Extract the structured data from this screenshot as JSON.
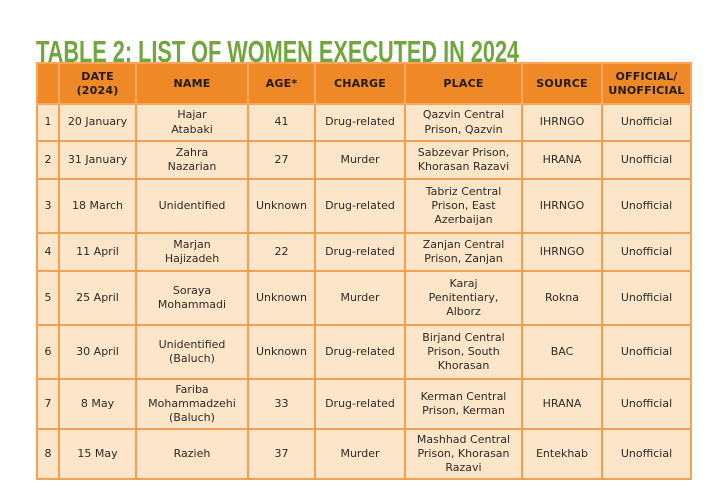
{
  "page": {
    "title": "TABLE 2: LIST OF WOMEN EXECUTED IN 2024"
  },
  "colors": {
    "title_green": "#71A53D",
    "header_orange": "#EF8826",
    "cell_peach": "#FCE5C9",
    "border_orange": "#F4A052",
    "text_dark": "#2E2A25"
  },
  "table": {
    "headers": {
      "index": "",
      "date": "DATE\n(2024)",
      "name": "NAME",
      "age": "AGE*",
      "charge": "CHARGE",
      "place": "PLACE",
      "source": "SOURCE",
      "official": "OFFICIAL/\nUNOFFICIAL"
    },
    "rows": [
      {
        "num": "1",
        "date": "20 January",
        "name": "Hajar\nAtabaki",
        "age": "41",
        "charge": "Drug-related",
        "place": "Qazvin Central\nPrison, Qazvin",
        "source": "IHRNGO",
        "official": "Unofficial"
      },
      {
        "num": "2",
        "date": "31 January",
        "name": "Zahra\nNazarian",
        "age": "27",
        "charge": "Murder",
        "place": "Sabzevar Prison,\nKhorasan Razavi",
        "source": "HRANA",
        "official": "Unofficial"
      },
      {
        "num": "3",
        "date": "18 March",
        "name": "Unidentified",
        "age": "Unknown",
        "charge": "Drug-related",
        "place": "Tabriz Central\nPrison, East\nAzerbaijan",
        "source": "IHRNGO",
        "official": "Unofficial"
      },
      {
        "num": "4",
        "date": "11 April",
        "name": "Marjan\nHajizadeh",
        "age": "22",
        "charge": "Drug-related",
        "place": "Zanjan Central\nPrison, Zanjan",
        "source": "IHRNGO",
        "official": "Unofficial"
      },
      {
        "num": "5",
        "date": "25 April",
        "name": "Soraya\nMohammadi",
        "age": "Unknown",
        "charge": "Murder",
        "place": "Karaj\nPenitentiary,\nAlborz",
        "source": "Rokna",
        "official": "Unofficial"
      },
      {
        "num": "6",
        "date": "30 April",
        "name": "Unidentified\n(Baluch)",
        "age": "Unknown",
        "charge": "Drug-related",
        "place": "Birjand Central\nPrison, South\nKhorasan",
        "source": "BAC",
        "official": "Unofficial"
      },
      {
        "num": "7",
        "date": "8 May",
        "name": "Fariba\nMohammadzehi\n(Baluch)",
        "age": "33",
        "charge": "Drug-related",
        "place": "Kerman Central\nPrison, Kerman",
        "source": "HRANA",
        "official": "Unofficial"
      },
      {
        "num": "8",
        "date": "15 May",
        "name": "Razieh",
        "age": "37",
        "charge": "Murder",
        "place": "Mashhad Central\nPrison, Khorasan\nRazavi",
        "source": "Entekhab",
        "official": "Unofficial"
      }
    ]
  }
}
